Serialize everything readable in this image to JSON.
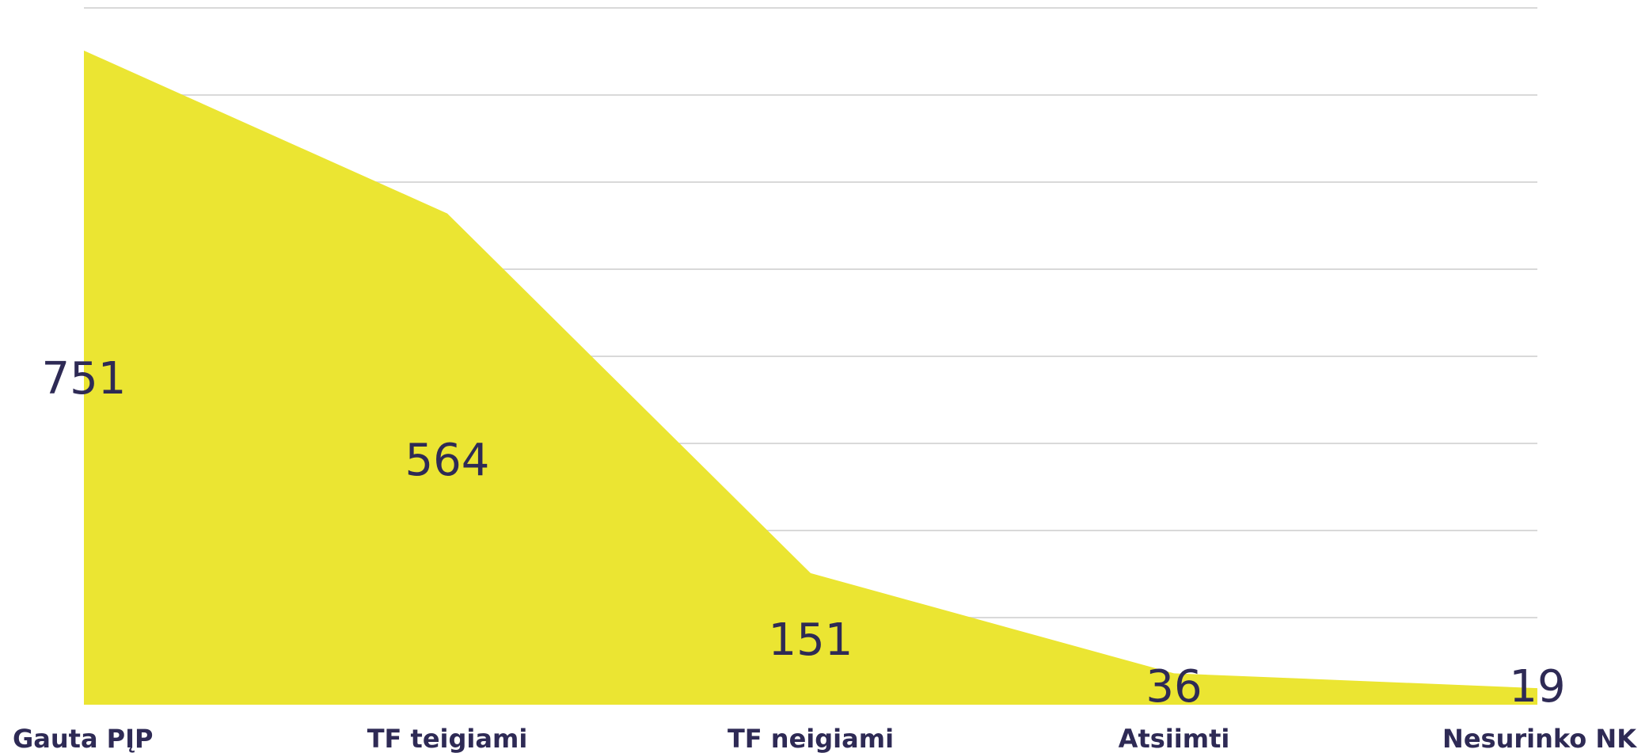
{
  "chart_data": {
    "type": "area",
    "title": "",
    "xlabel": "",
    "ylabel": "",
    "categories": [
      "Gauta PĮP",
      "TF teigiami",
      "TF neigiami",
      "Atsiimti",
      "Nesurinko NK"
    ],
    "series": [
      {
        "values": [
          751,
          564,
          151,
          36,
          19
        ]
      }
    ],
    "ylim": [
      0,
      800
    ],
    "y_gridline_step": 100,
    "y_tick_labels_shown": false,
    "grid": true,
    "legend": "none",
    "colors": {
      "area": "#ebe532",
      "text": "#2e2a55",
      "grid": "#d9d9d9"
    }
  }
}
